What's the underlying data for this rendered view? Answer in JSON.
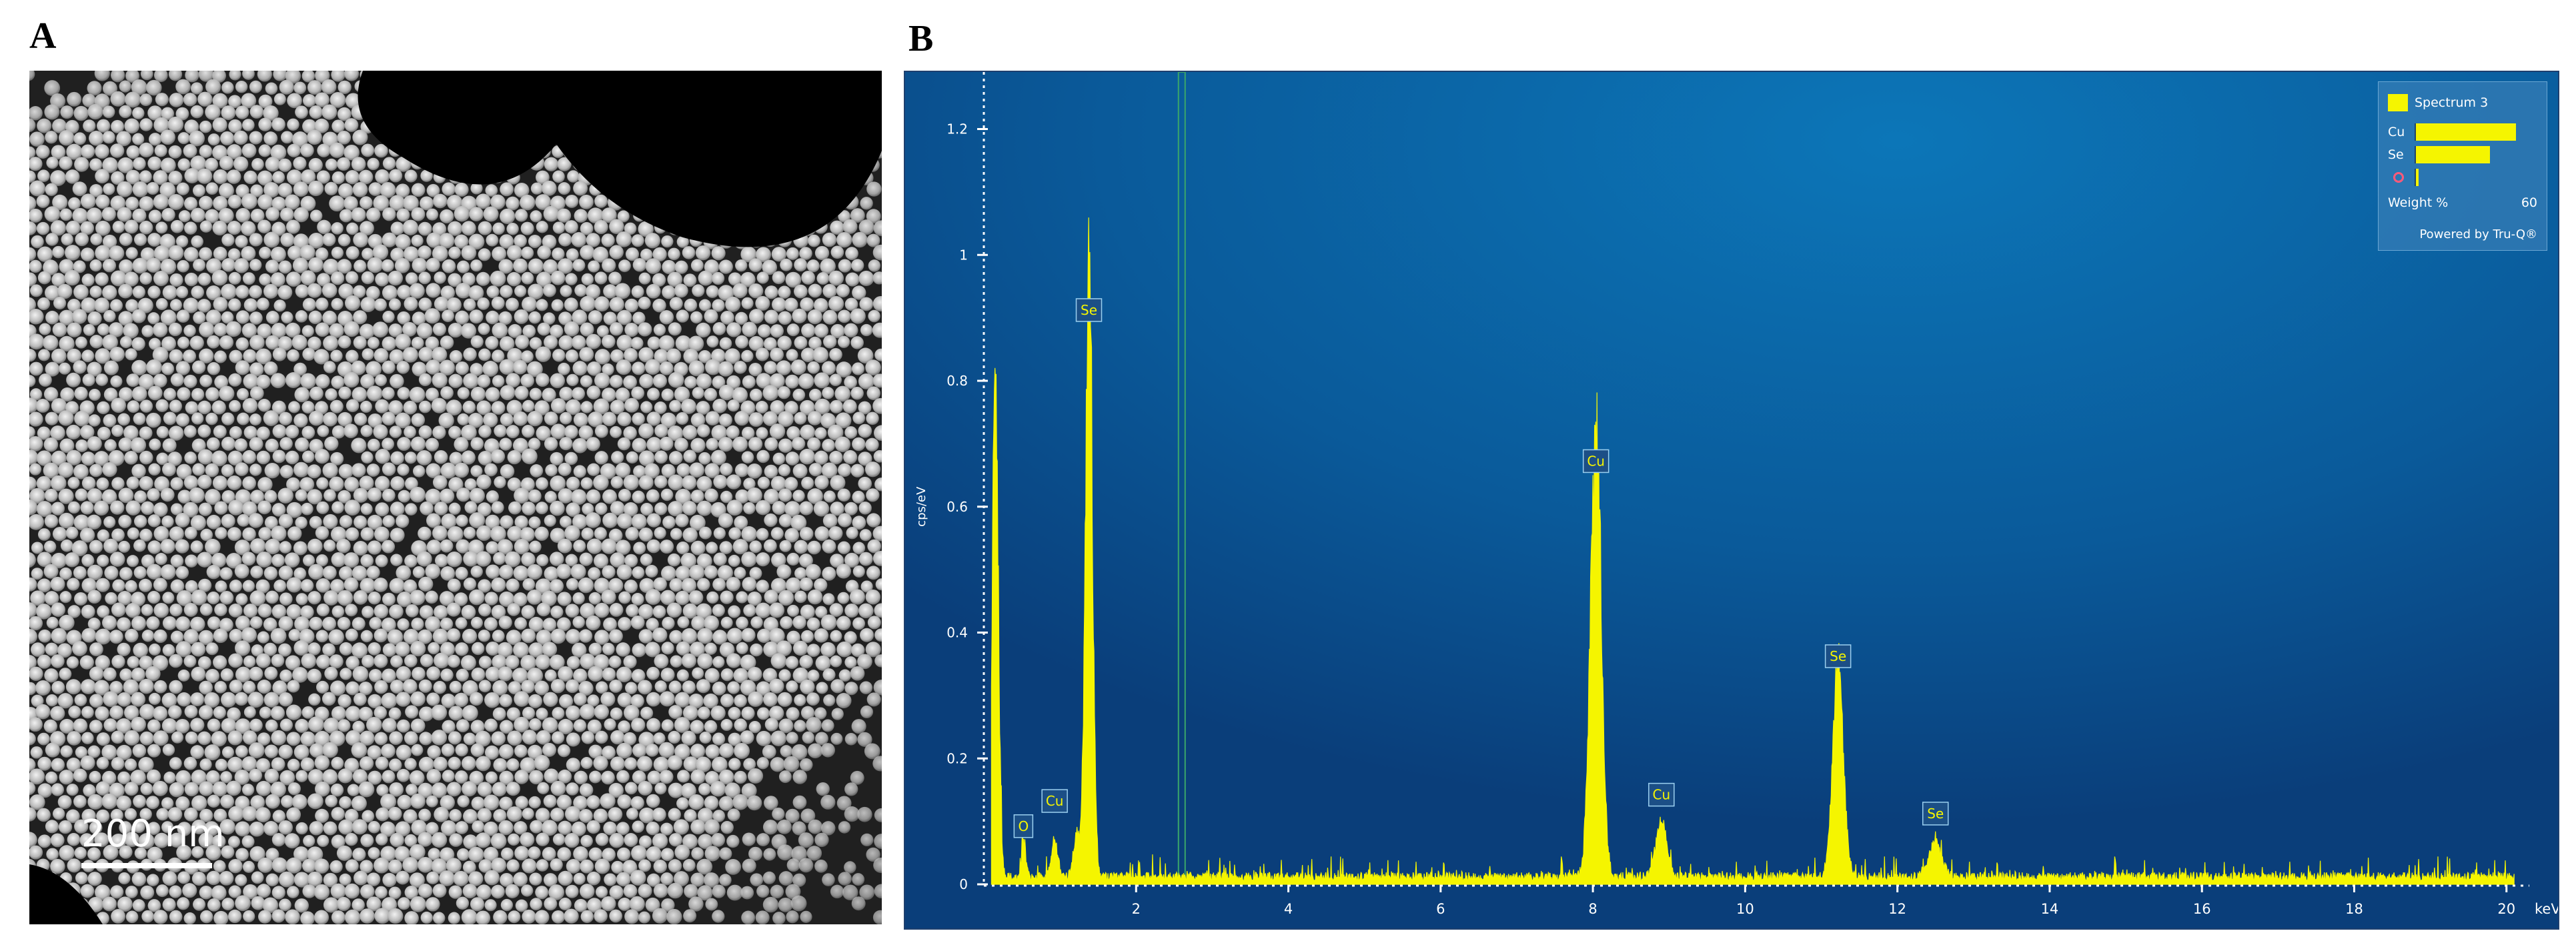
{
  "panel_labels": {
    "a": "A",
    "b": "B"
  },
  "micrograph": {
    "scale_bar_text": "200  nm"
  },
  "chart_data": {
    "type": "line",
    "title": "",
    "xlabel": "keV",
    "ylabel": "cps/eV",
    "xlim": [
      0,
      20.3
    ],
    "ylim": [
      0,
      1.28
    ],
    "x_ticks": [
      2,
      4,
      6,
      8,
      10,
      12,
      14,
      16,
      18,
      20
    ],
    "y_ticks": [
      0,
      0.2,
      0.4,
      0.6,
      0.8,
      1,
      1.2
    ],
    "y_tick_labels": [
      "0",
      "0.2",
      "0.4",
      "0.6",
      "0.8",
      "1",
      "1.2"
    ],
    "series": [
      {
        "name": "Spectrum 3",
        "color": "#f5f500",
        "peaks": [
          {
            "x": 0.15,
            "y": 0.75,
            "width": 0.04
          },
          {
            "x": 0.52,
            "y": 0.05,
            "width": 0.03
          },
          {
            "x": 0.93,
            "y": 0.06,
            "width": 0.04
          },
          {
            "x": 1.22,
            "y": 0.07,
            "width": 0.04
          },
          {
            "x": 1.38,
            "y": 1.0,
            "width": 0.045
          },
          {
            "x": 8.04,
            "y": 0.7,
            "width": 0.07
          },
          {
            "x": 8.9,
            "y": 0.09,
            "width": 0.07
          },
          {
            "x": 11.22,
            "y": 0.33,
            "width": 0.07
          },
          {
            "x": 12.5,
            "y": 0.055,
            "width": 0.08
          }
        ],
        "background": 0.012
      }
    ],
    "peak_labels": [
      {
        "text": "O",
        "x": 0.52,
        "y": 0.05
      },
      {
        "text": "Cu",
        "x": 0.93,
        "y": 0.09
      },
      {
        "text": "Se",
        "x": 1.38,
        "y": 0.87
      },
      {
        "text": "Cu",
        "x": 8.04,
        "y": 0.63
      },
      {
        "text": "Cu",
        "x": 8.9,
        "y": 0.1
      },
      {
        "text": "Se",
        "x": 11.22,
        "y": 0.32
      },
      {
        "text": "Se",
        "x": 12.5,
        "y": 0.07
      }
    ],
    "marker_line_x": 2.6,
    "legend": {
      "title": "Spectrum 3",
      "items": [
        {
          "label": "Cu",
          "weight_percent": 53
        },
        {
          "label": "Se",
          "weight_percent": 39
        },
        {
          "label": "O",
          "weight_percent": 1
        }
      ],
      "axis_label": "Weight %",
      "axis_max": "60",
      "footer": "Powered by Tru-Q®",
      "placement": "top-right"
    }
  }
}
